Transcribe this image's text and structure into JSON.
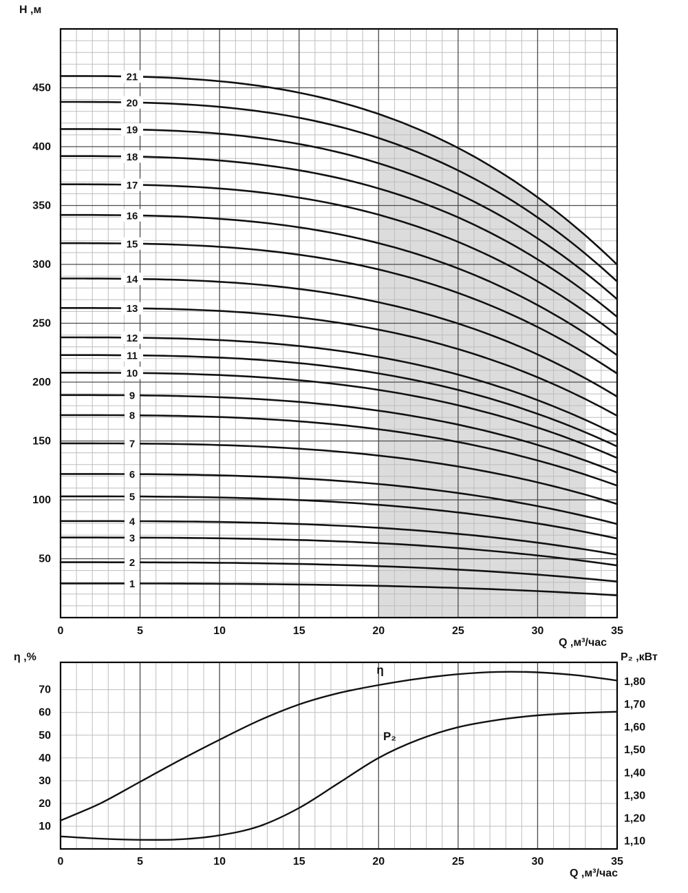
{
  "figure": {
    "head_chart": {
      "ylabel": "Н ,м",
      "xlabel": "Q ,м³/час"
    },
    "perf_chart": {
      "ylabel_left": "η ,%",
      "ylabel_right": "P₂ ,кВт",
      "xlabel": "Q ,м³/час"
    }
  },
  "colors": {
    "curve": "#111111",
    "minor_grid": "#bdbdbd",
    "major_grid": "#4a4a4a",
    "border": "#000000",
    "shading": "#dcdcdc"
  },
  "chart_data": [
    {
      "type": "line",
      "id": "head-curves",
      "xlabel": "Q ,м³/час",
      "ylabel": "Н ,м",
      "xlim": [
        0,
        35
      ],
      "ylim": [
        0,
        500
      ],
      "x_major_ticks": [
        0,
        5,
        10,
        15,
        20,
        25,
        30,
        35
      ],
      "x_minor_step": 1,
      "y_major_ticks": [
        50,
        100,
        150,
        200,
        250,
        300,
        350,
        400,
        450
      ],
      "y_minor_step": 10,
      "grid": true,
      "curve_label_q": 4.5,
      "shape": {
        "c": 1.313e-05,
        "p": 2.865
      },
      "shaded_region": {
        "q_from": 20,
        "q_to": 33,
        "color": "#dcdcdc"
      },
      "series": [
        {
          "name": "1",
          "H0": 29
        },
        {
          "name": "2",
          "H0": 47
        },
        {
          "name": "3",
          "H0": 68
        },
        {
          "name": "4",
          "H0": 82
        },
        {
          "name": "5",
          "H0": 103
        },
        {
          "name": "6",
          "H0": 122
        },
        {
          "name": "7",
          "H0": 148
        },
        {
          "name": "8",
          "H0": 172
        },
        {
          "name": "9",
          "H0": 189
        },
        {
          "name": "10",
          "H0": 208
        },
        {
          "name": "11",
          "H0": 223
        },
        {
          "name": "12",
          "H0": 238
        },
        {
          "name": "13",
          "H0": 263
        },
        {
          "name": "14",
          "H0": 288
        },
        {
          "name": "15",
          "H0": 318
        },
        {
          "name": "16",
          "H0": 342
        },
        {
          "name": "17",
          "H0": 368
        },
        {
          "name": "18",
          "H0": 392
        },
        {
          "name": "19",
          "H0": 415
        },
        {
          "name": "20",
          "H0": 438
        },
        {
          "name": "21",
          "H0": 460
        }
      ]
    },
    {
      "type": "line",
      "id": "efficiency-power",
      "xlabel": "Q ,м³/час",
      "xlim": [
        0,
        35
      ],
      "x_major_ticks": [
        0,
        5,
        10,
        15,
        20,
        25,
        30,
        35
      ],
      "x_minor_step": 1,
      "left_axis": {
        "label": "η ,%",
        "ticks": [
          10,
          20,
          30,
          40,
          50,
          60,
          70
        ],
        "range": [
          0,
          82
        ]
      },
      "right_axis": {
        "label": "P₂ ,кВт",
        "ticks": [
          "1,10",
          "1,20",
          "1,30",
          "1,40",
          "1,50",
          "1,60",
          "1,70",
          "1,80"
        ],
        "tick_values": [
          1.1,
          1.2,
          1.3,
          1.4,
          1.5,
          1.6,
          1.7,
          1.8
        ],
        "range": [
          1.065,
          1.885
        ]
      },
      "series": [
        {
          "name": "η",
          "axis": "left",
          "label_pos": {
            "x": 20.1,
            "y": 78.5
          },
          "x": [
            0,
            2.5,
            5,
            7.5,
            10,
            12.5,
            15,
            17.5,
            20,
            22.5,
            25,
            27.5,
            30,
            32.5,
            35
          ],
          "y": [
            12.5,
            20,
            29.5,
            39,
            48,
            56.5,
            63.5,
            68.5,
            72,
            74.8,
            76.8,
            77.8,
            77.6,
            76.3,
            74
          ]
        },
        {
          "name": "P₂",
          "axis": "right",
          "label_pos": {
            "x": 20.7,
            "y": 1.558
          },
          "x": [
            0,
            2.5,
            5,
            7.5,
            10,
            12.5,
            15,
            17.5,
            20,
            22.5,
            25,
            27.5,
            30,
            32.5,
            35
          ],
          "y": [
            1.12,
            1.11,
            1.105,
            1.107,
            1.125,
            1.165,
            1.245,
            1.355,
            1.465,
            1.545,
            1.6,
            1.632,
            1.652,
            1.662,
            1.668
          ]
        }
      ]
    }
  ]
}
